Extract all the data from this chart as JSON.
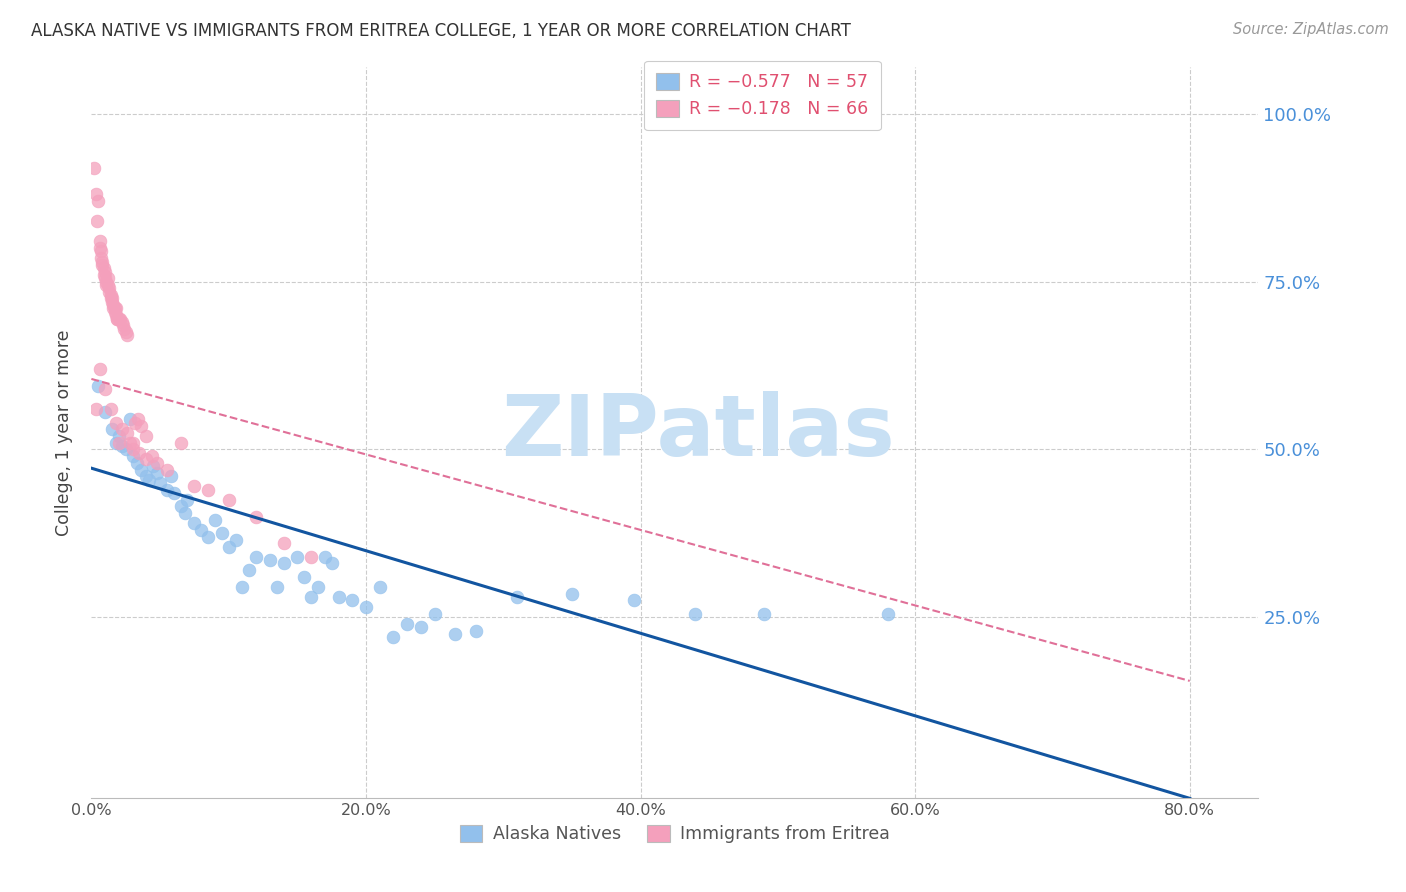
{
  "title": "ALASKA NATIVE VS IMMIGRANTS FROM ERITREA COLLEGE, 1 YEAR OR MORE CORRELATION CHART",
  "source": "Source: ZipAtlas.com",
  "ylabel": "College, 1 year or more",
  "xlim": [
    0.0,
    0.85
  ],
  "ylim": [
    -0.02,
    1.07
  ],
  "xtick_labels": [
    "0.0%",
    "20.0%",
    "40.0%",
    "60.0%",
    "80.0%"
  ],
  "xtick_vals": [
    0.0,
    0.2,
    0.4,
    0.6,
    0.8
  ],
  "ytick_right_vals": [
    1.0,
    0.75,
    0.5,
    0.25
  ],
  "ytick_right_labels": [
    "100.0%",
    "75.0%",
    "50.0%",
    "25.0%"
  ],
  "gridline_color": "#cccccc",
  "background_color": "#ffffff",
  "watermark_text": "ZIPatlas",
  "watermark_color": "#C8E0F4",
  "legend_r1": "R = −0.577   N = 57",
  "legend_r2": "R = −0.178   N = 66",
  "blue_dot_color": "#92C0EC",
  "pink_dot_color": "#F4A0BC",
  "blue_line_color": "#1255A0",
  "pink_line_color": "#E07098",
  "right_axis_color": "#4A90D9",
  "title_color": "#333333",
  "blue_line_y0": 0.472,
  "blue_line_y1": -0.02,
  "pink_line_y0": 0.605,
  "pink_line_y1": 0.155,
  "alaska_x": [
    0.005,
    0.01,
    0.015,
    0.018,
    0.02,
    0.022,
    0.025,
    0.028,
    0.03,
    0.033,
    0.036,
    0.04,
    0.042,
    0.045,
    0.048,
    0.05,
    0.055,
    0.058,
    0.06,
    0.065,
    0.068,
    0.07,
    0.075,
    0.08,
    0.085,
    0.09,
    0.095,
    0.1,
    0.105,
    0.11,
    0.115,
    0.12,
    0.13,
    0.135,
    0.14,
    0.15,
    0.155,
    0.16,
    0.165,
    0.17,
    0.175,
    0.18,
    0.19,
    0.2,
    0.21,
    0.22,
    0.23,
    0.24,
    0.25,
    0.265,
    0.28,
    0.31,
    0.35,
    0.395,
    0.44,
    0.49,
    0.58
  ],
  "alaska_y": [
    0.595,
    0.555,
    0.53,
    0.51,
    0.52,
    0.505,
    0.5,
    0.545,
    0.49,
    0.48,
    0.47,
    0.46,
    0.455,
    0.475,
    0.465,
    0.45,
    0.44,
    0.46,
    0.435,
    0.415,
    0.405,
    0.425,
    0.39,
    0.38,
    0.37,
    0.395,
    0.375,
    0.355,
    0.365,
    0.295,
    0.32,
    0.34,
    0.335,
    0.295,
    0.33,
    0.34,
    0.31,
    0.28,
    0.295,
    0.34,
    0.33,
    0.28,
    0.275,
    0.265,
    0.295,
    0.22,
    0.24,
    0.235,
    0.255,
    0.225,
    0.23,
    0.28,
    0.285,
    0.275,
    0.255,
    0.255,
    0.255
  ],
  "eritrea_x": [
    0.002,
    0.003,
    0.004,
    0.005,
    0.006,
    0.006,
    0.007,
    0.007,
    0.008,
    0.008,
    0.009,
    0.009,
    0.01,
    0.01,
    0.011,
    0.011,
    0.012,
    0.012,
    0.013,
    0.013,
    0.014,
    0.014,
    0.015,
    0.015,
    0.016,
    0.016,
    0.017,
    0.017,
    0.018,
    0.018,
    0.019,
    0.019,
    0.02,
    0.02,
    0.021,
    0.022,
    0.023,
    0.024,
    0.025,
    0.026,
    0.028,
    0.03,
    0.032,
    0.034,
    0.036,
    0.04,
    0.044,
    0.048,
    0.055,
    0.065,
    0.075,
    0.085,
    0.1,
    0.12,
    0.14,
    0.16,
    0.003,
    0.006,
    0.01,
    0.014,
    0.018,
    0.022,
    0.026,
    0.03,
    0.035,
    0.04
  ],
  "eritrea_y": [
    0.92,
    0.88,
    0.84,
    0.87,
    0.81,
    0.8,
    0.785,
    0.795,
    0.775,
    0.78,
    0.77,
    0.76,
    0.755,
    0.765,
    0.75,
    0.745,
    0.745,
    0.755,
    0.74,
    0.735,
    0.73,
    0.725,
    0.725,
    0.72,
    0.715,
    0.71,
    0.71,
    0.705,
    0.71,
    0.7,
    0.695,
    0.695,
    0.695,
    0.51,
    0.695,
    0.69,
    0.685,
    0.68,
    0.675,
    0.67,
    0.51,
    0.5,
    0.54,
    0.545,
    0.535,
    0.52,
    0.49,
    0.48,
    0.47,
    0.51,
    0.445,
    0.44,
    0.425,
    0.4,
    0.36,
    0.34,
    0.56,
    0.62,
    0.59,
    0.56,
    0.54,
    0.53,
    0.525,
    0.51,
    0.495,
    0.485
  ]
}
